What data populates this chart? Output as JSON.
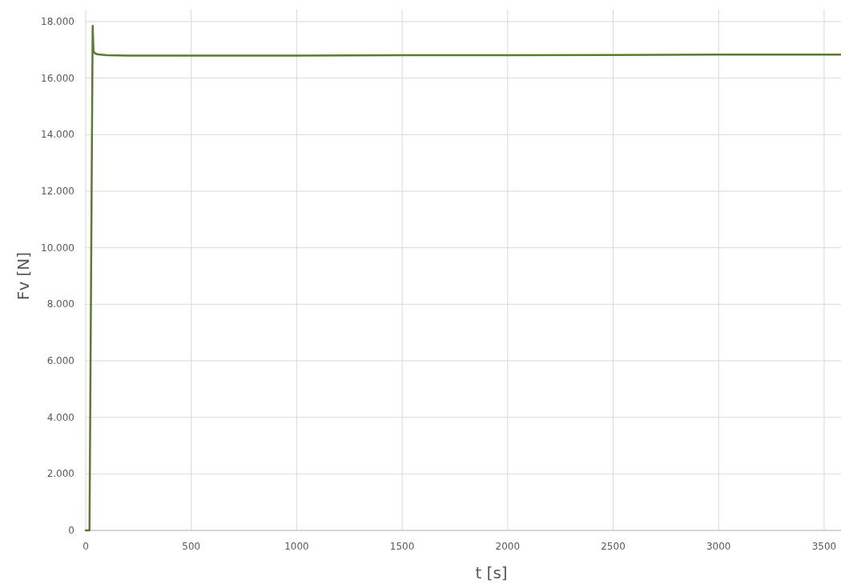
{
  "chart_data": {
    "type": "line",
    "xlabel": "t [s]",
    "ylabel": "Fv [N]",
    "xlim": [
      0,
      3580
    ],
    "ylim": [
      0,
      18000
    ],
    "xticks": [
      0,
      500,
      1000,
      1500,
      2000,
      2500,
      3000,
      3500
    ],
    "yticks": [
      0,
      {
        "value": 2000,
        "label": "2.000"
      },
      {
        "value": 4000,
        "label": "4.000"
      },
      {
        "value": 6000,
        "label": "6.000"
      },
      {
        "value": 8000,
        "label": "8.000"
      },
      {
        "value": 10000,
        "label": "10.000"
      },
      {
        "value": 12000,
        "label": "12.000"
      },
      {
        "value": 14000,
        "label": "14.000"
      },
      {
        "value": 16000,
        "label": "16.000"
      },
      {
        "value": 18000,
        "label": "18.000"
      }
    ],
    "grid": true,
    "marker": "none",
    "line_style": "solid",
    "series": [
      {
        "color": "#5b7b2f",
        "x": [
          0,
          18,
          33,
          37,
          45,
          60,
          100,
          200,
          400,
          700,
          1000,
          1500,
          2000,
          2500,
          3000,
          3580
        ],
        "values": [
          0,
          0,
          17850,
          16950,
          16870,
          16840,
          16810,
          16800,
          16800,
          16800,
          16800,
          16810,
          16810,
          16820,
          16830,
          16830
        ]
      }
    ]
  }
}
